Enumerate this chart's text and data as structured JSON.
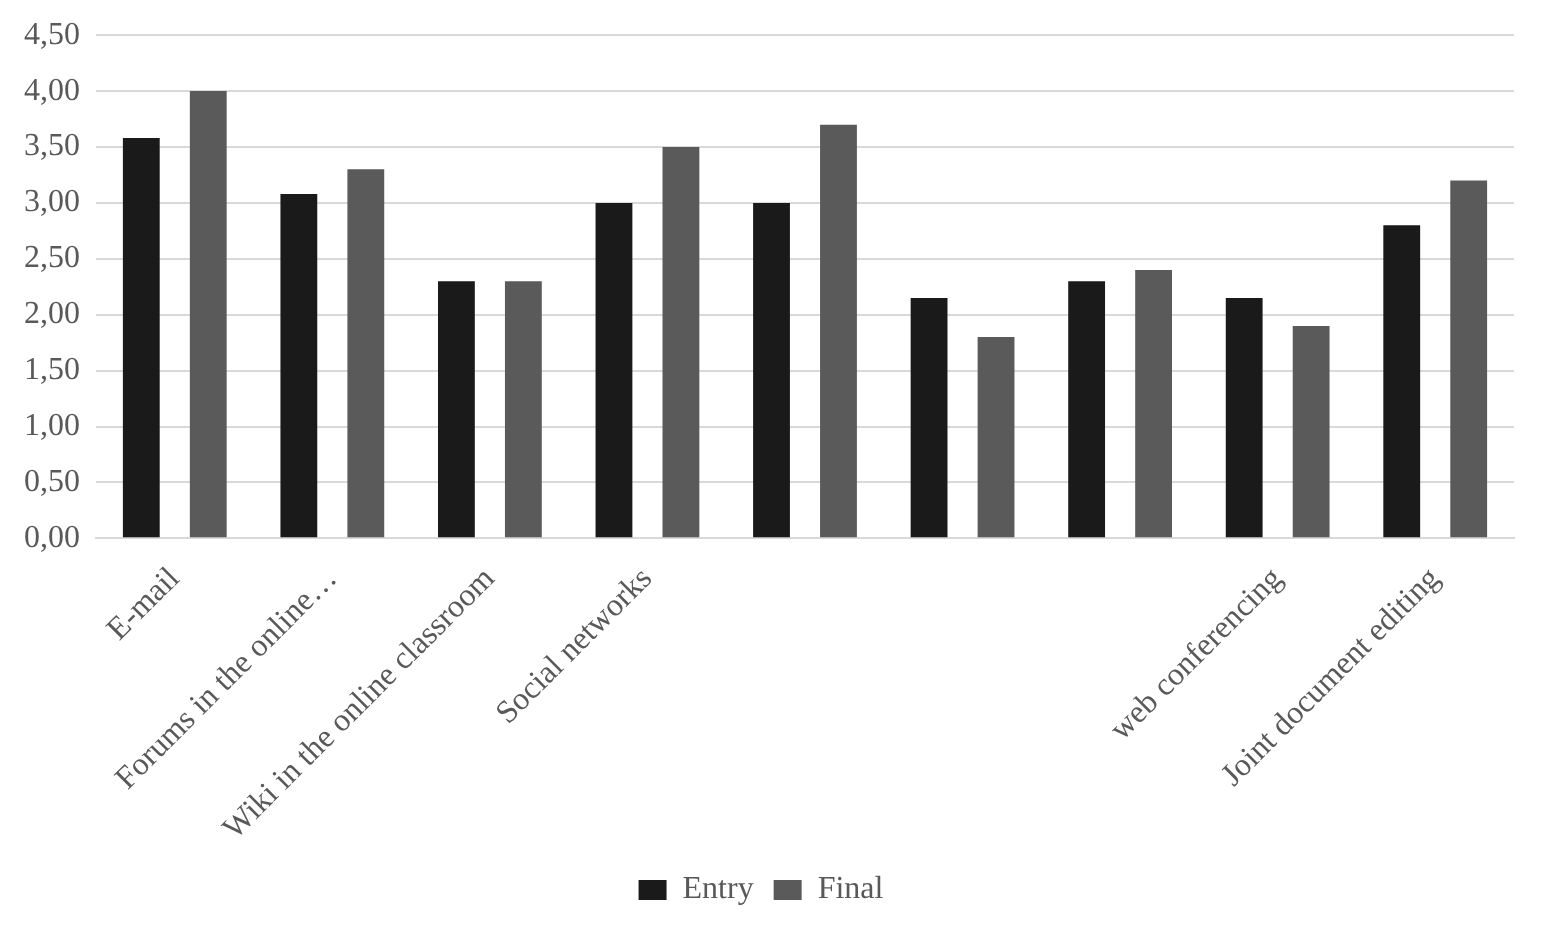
{
  "chart_data": {
    "type": "bar",
    "categories": [
      "E-mail",
      "Forums in the online…",
      "Wiki in the online classroom",
      "Social networks",
      null,
      null,
      null,
      "web conferencing",
      "Joint document editing"
    ],
    "series": [
      {
        "name": "Entry",
        "color": "#1a1a1a",
        "values": [
          3.58,
          3.08,
          2.3,
          3.0,
          3.0,
          2.15,
          2.3,
          2.15,
          2.8
        ]
      },
      {
        "name": "Final",
        "color": "#5a5a5a",
        "values": [
          4.0,
          3.3,
          2.3,
          3.5,
          3.7,
          1.8,
          2.4,
          1.9,
          3.2
        ]
      }
    ],
    "ylim": [
      0,
      4.5
    ],
    "yticks": [
      {
        "value": 0,
        "label": "0,00"
      },
      {
        "value": 0.5,
        "label": "0,50"
      },
      {
        "value": 1,
        "label": "1,00"
      },
      {
        "value": 1.5,
        "label": "1,50"
      },
      {
        "value": 2,
        "label": "2,00"
      },
      {
        "value": 2.5,
        "label": "2,50"
      },
      {
        "value": 3,
        "label": "3,00"
      },
      {
        "value": 3.5,
        "label": "3,50"
      },
      {
        "value": 4,
        "label": "4,00"
      },
      {
        "value": 4.5,
        "label": "4,50"
      }
    ],
    "grid": "y",
    "legend": "bottom"
  }
}
